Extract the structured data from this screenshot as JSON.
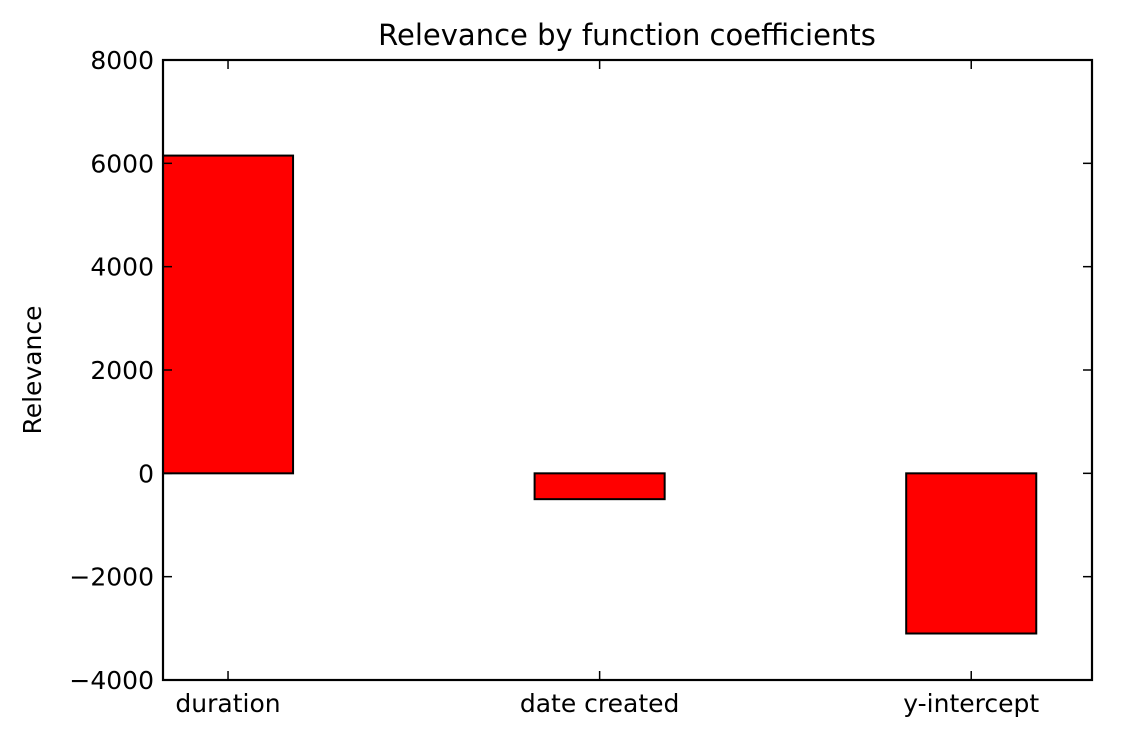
{
  "chart_data": {
    "type": "bar",
    "title": "Relevance by function coefficients",
    "xlabel": "",
    "ylabel": "Relevance",
    "categories": [
      "duration",
      "date created",
      "y-intercept"
    ],
    "values": [
      6150,
      -500,
      -3100
    ],
    "ylim": [
      -4000,
      8000
    ],
    "yticks": [
      -4000,
      -2000,
      0,
      2000,
      4000,
      6000,
      8000
    ],
    "ytick_labels": [
      "−4000",
      "−2000",
      "0",
      "2000",
      "4000",
      "6000",
      "8000"
    ],
    "xlim": [
      0,
      2.5
    ],
    "bar_width": 0.35,
    "grid": false,
    "bar_color": "#ff0000",
    "edge_color": "#000000"
  }
}
